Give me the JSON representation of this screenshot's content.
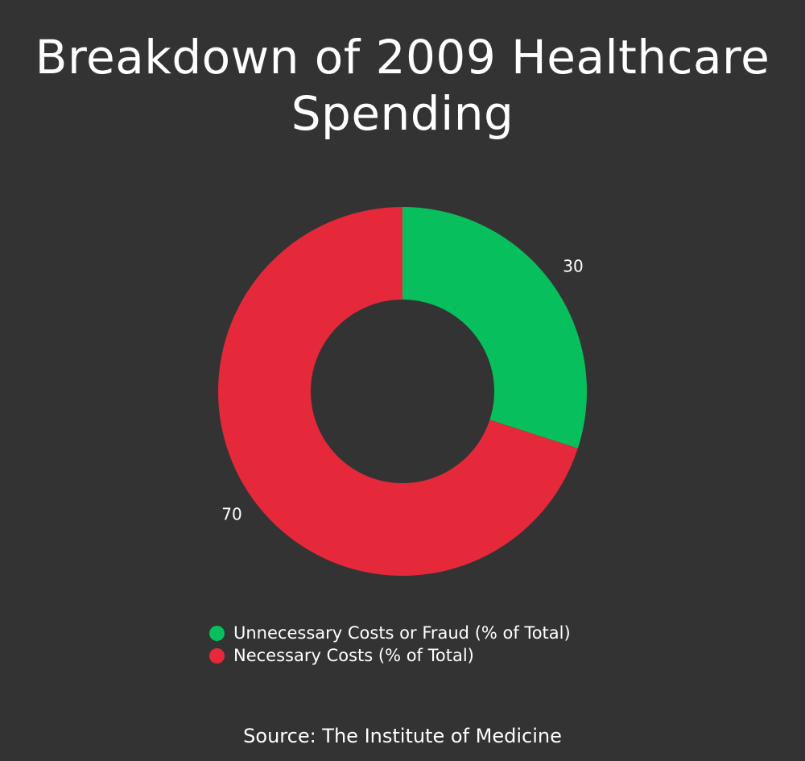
{
  "chart_data": {
    "type": "pie",
    "title": "Breakdown of 2009 Healthcare Spending",
    "categories": [
      "Unnecessary Costs or Fraud (% of Total)",
      "Necessary Costs (% of Total)"
    ],
    "values": [
      30,
      70
    ],
    "data_labels": [
      "30",
      "70"
    ],
    "colors": [
      "#08bf5e",
      "#e5293a"
    ],
    "donut": true,
    "legend_placement": "bottom",
    "source": "Source: The Institute of Medicine"
  }
}
